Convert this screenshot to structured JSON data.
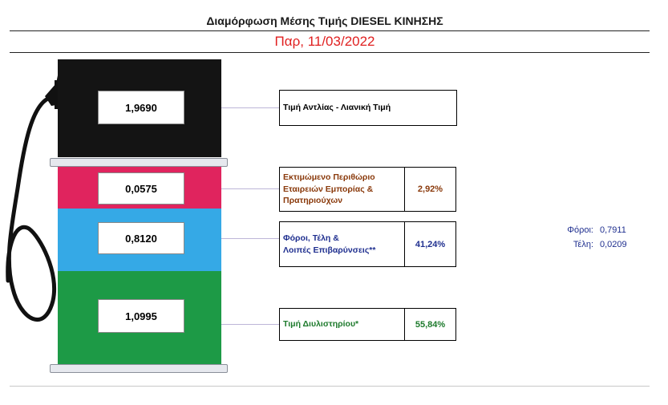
{
  "header": {
    "title": "Διαμόρφωση Μέσης Τιμής  DIESEL ΚΙΝΗΣΗΣ",
    "date": "Παρ, 11/03/2022"
  },
  "colors": {
    "retail": "#141414",
    "margin": "#e0245e",
    "taxes": "#35a9e6",
    "refinery": "#1d9a46",
    "margin_text": "#8a3a0c",
    "taxes_text": "#1f2f8f",
    "refinery_text": "#1d7a2c",
    "date_text": "#e02020"
  },
  "components": [
    {
      "id": "retail",
      "value": "1,9690",
      "label": [
        "Τιμή Αντλίας - Λιανική Τιμή"
      ],
      "percent": ""
    },
    {
      "id": "margin",
      "value": "0,0575",
      "label": [
        "Εκτιμώμενο Περιθώριο",
        "Εταιρειών Εμπορίας &",
        "Πρατηριούχων"
      ],
      "percent": "2,92%"
    },
    {
      "id": "taxes",
      "value": "0,8120",
      "label": [
        "Φόροι, Τέλη &",
        "Λοιπές Επιβαρύνσεις**"
      ],
      "percent": "41,24%"
    },
    {
      "id": "refinery",
      "value": "1,0995",
      "label": [
        "Τιμή Διυλιστηρίου*"
      ],
      "percent": "55,84%"
    }
  ],
  "tax_breakdown": [
    {
      "label": "Φόροι:",
      "value": "0,7911"
    },
    {
      "label": "Τέλη:",
      "value": "0,0209"
    }
  ]
}
